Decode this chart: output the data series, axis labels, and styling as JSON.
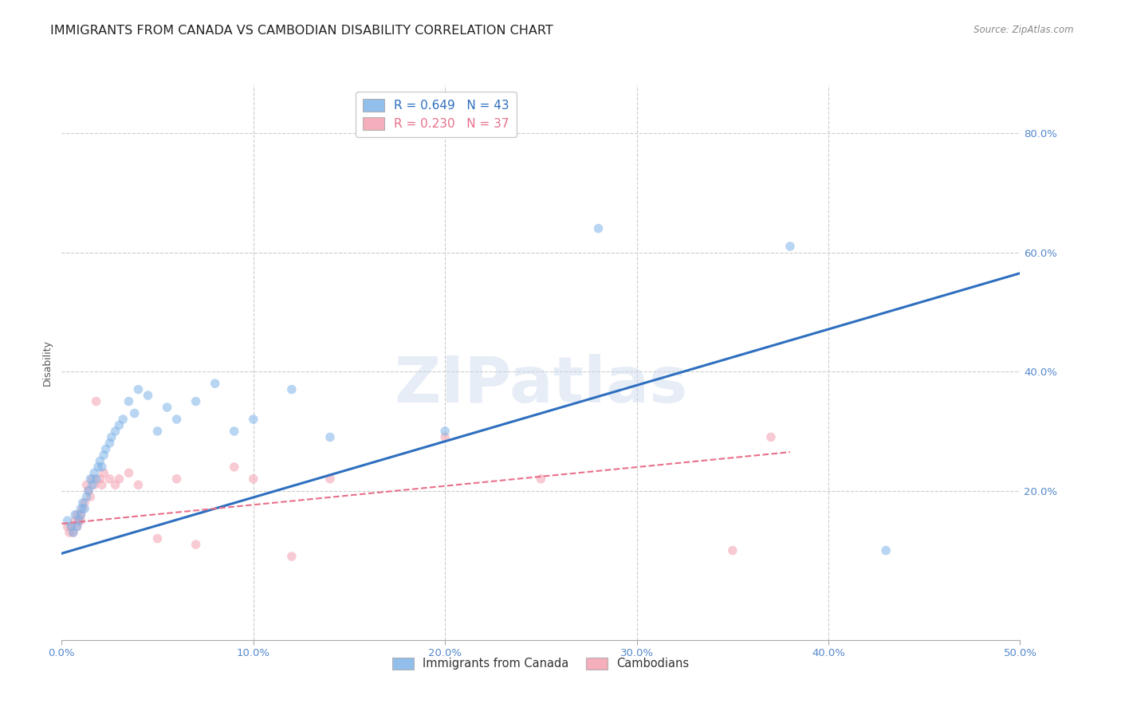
{
  "title": "IMMIGRANTS FROM CANADA VS CAMBODIAN DISABILITY CORRELATION CHART",
  "source": "Source: ZipAtlas.com",
  "ylabel": "Disability",
  "xlim": [
    0.0,
    0.5
  ],
  "ylim": [
    -0.05,
    0.88
  ],
  "watermark": "ZIPatlas",
  "legend_label1": "R = 0.649   N = 43",
  "legend_label2": "R = 0.230   N = 37",
  "bottom_legend_label1": "Immigrants from Canada",
  "bottom_legend_label2": "Cambodians",
  "blue_color": "#7EB3E8",
  "pink_color": "#F4A0B0",
  "blue_line_color": "#2E6FBF",
  "pink_line_color": "#E8708A",
  "blue_scatter_x": [
    0.003,
    0.005,
    0.006,
    0.007,
    0.008,
    0.009,
    0.01,
    0.01,
    0.011,
    0.012,
    0.013,
    0.014,
    0.015,
    0.016,
    0.017,
    0.018,
    0.019,
    0.02,
    0.021,
    0.022,
    0.023,
    0.025,
    0.026,
    0.028,
    0.03,
    0.032,
    0.035,
    0.038,
    0.04,
    0.045,
    0.05,
    0.055,
    0.06,
    0.07,
    0.08,
    0.09,
    0.1,
    0.12,
    0.14,
    0.2,
    0.28,
    0.38,
    0.43
  ],
  "blue_scatter_y": [
    0.15,
    0.14,
    0.13,
    0.16,
    0.14,
    0.15,
    0.17,
    0.16,
    0.18,
    0.17,
    0.19,
    0.2,
    0.22,
    0.21,
    0.23,
    0.22,
    0.24,
    0.25,
    0.24,
    0.26,
    0.27,
    0.28,
    0.29,
    0.3,
    0.31,
    0.32,
    0.35,
    0.33,
    0.37,
    0.36,
    0.3,
    0.34,
    0.32,
    0.35,
    0.38,
    0.3,
    0.32,
    0.37,
    0.29,
    0.3,
    0.64,
    0.61,
    0.1
  ],
  "pink_scatter_x": [
    0.003,
    0.004,
    0.005,
    0.006,
    0.007,
    0.008,
    0.008,
    0.009,
    0.01,
    0.01,
    0.011,
    0.012,
    0.013,
    0.014,
    0.015,
    0.016,
    0.017,
    0.018,
    0.02,
    0.021,
    0.022,
    0.025,
    0.028,
    0.03,
    0.035,
    0.04,
    0.05,
    0.06,
    0.07,
    0.09,
    0.1,
    0.12,
    0.14,
    0.2,
    0.25,
    0.35,
    0.37
  ],
  "pink_scatter_y": [
    0.14,
    0.13,
    0.14,
    0.13,
    0.15,
    0.14,
    0.16,
    0.15,
    0.16,
    0.15,
    0.17,
    0.18,
    0.21,
    0.2,
    0.19,
    0.22,
    0.21,
    0.35,
    0.22,
    0.21,
    0.23,
    0.22,
    0.21,
    0.22,
    0.23,
    0.21,
    0.12,
    0.22,
    0.11,
    0.24,
    0.22,
    0.09,
    0.22,
    0.29,
    0.22,
    0.1,
    0.29
  ],
  "blue_line_x": [
    0.0,
    0.5
  ],
  "blue_line_y": [
    0.095,
    0.565
  ],
  "pink_line_x": [
    0.0,
    0.38
  ],
  "pink_line_y": [
    0.145,
    0.265
  ],
  "grid_color": "#CCCCCC",
  "background_color": "#FFFFFF",
  "title_fontsize": 11.5,
  "axis_label_fontsize": 9,
  "tick_fontsize": 9.5,
  "scatter_size": 70,
  "scatter_alpha": 0.55,
  "xticks": [
    0.0,
    0.1,
    0.2,
    0.3,
    0.4,
    0.5
  ],
  "xtick_labels": [
    "0.0%",
    "10.0%",
    "20.0%",
    "30.0%",
    "40.0%",
    "50.0%"
  ],
  "yticks": [
    0.0,
    0.2,
    0.4,
    0.6,
    0.8
  ],
  "ytick_labels": [
    "",
    "20.0%",
    "40.0%",
    "60.0%",
    "80.0%"
  ]
}
